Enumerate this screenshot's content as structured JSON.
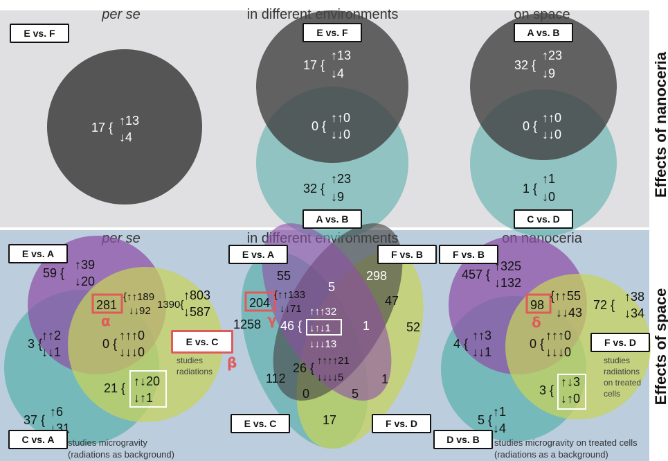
{
  "side_labels": {
    "top": "Effects of nanoceria",
    "bottom": "Effects of space"
  },
  "top_headers": [
    "per se",
    "in different environments",
    "on space"
  ],
  "bottom_headers": [
    "per se",
    "in different environments",
    "on nanoceria"
  ],
  "comparison_labels": {
    "t1": "E vs. F",
    "t2a": "E vs. F",
    "t2b": "A vs. B",
    "t3a": "A vs. B",
    "t3b": "C vs. D",
    "b1a": "E vs. A",
    "b1b": "E vs. C",
    "b1c": "C vs. A",
    "b2a": "E vs. A",
    "b2b": "F vs. B",
    "b2c": "E vs. C",
    "b2d": "F vs. D",
    "b3a": "F vs. B",
    "b3b": "F vs. D",
    "b3c": "D vs. B"
  },
  "top_counts": {
    "t1": {
      "total": "17 {",
      "up": "↑13",
      "down": "↓4"
    },
    "t2_top": {
      "total": "17 {",
      "up": "↑13",
      "down": "↓4"
    },
    "t2_mid": {
      "total": "0 {",
      "up": "↑↑0",
      "down": "↓↓0"
    },
    "t2_bot": {
      "total": "32 {",
      "up": "↑23",
      "down": "↓9"
    },
    "t3_top": {
      "total": "32 {",
      "up": "↑23",
      "down": "↓9"
    },
    "t3_mid": {
      "total": "0 {",
      "up": "↑↑0",
      "down": "↓↓0"
    },
    "t3_bot": {
      "total": "1 {",
      "up": "↑1",
      "down": "↓0"
    }
  },
  "bottom_counts": {
    "b1_purple": {
      "total": "59 {",
      "up": "↑39",
      "down": "↓20"
    },
    "b1_pe": {
      "total": "281",
      "up": "{↑↑189",
      "down": "↓↓92"
    },
    "b1_olive": {
      "total": "1390{",
      "up": "↑803",
      "down": "↓587"
    },
    "b1_pt": {
      "total": "3 {",
      "up": "↑↑2",
      "down": "↓↓1"
    },
    "b1_center": {
      "total": "0 {",
      "up": "↑↑↑0",
      "down": "↓↓↓0"
    },
    "b1_te": {
      "total": "21 {",
      "up": "↑↓20",
      "down": "↓↑1"
    },
    "b1_teal": {
      "total": "37 {",
      "up": "↑6",
      "down": "↓31"
    },
    "b2_top": "55",
    "b2_dark": "298",
    "b2_center_top": "5",
    "b2_pv": {
      "total": "204",
      "up": "{↑↑133",
      "down": "↓↓71"
    },
    "b2_left": "1258",
    "b2_inner": {
      "total": "46 {",
      "a": "↑↑↑32",
      "b": "↓↑↓1",
      "c": "↓↓↓13"
    },
    "b2_c1": "1",
    "b2_r47": "47",
    "b2_r52": "52",
    "b2_112": "112",
    "b2_26": {
      "total": "26 {",
      "up": "↑↑↑↑21",
      "down": "↓↓↓↓5"
    },
    "b2_1b": "1",
    "b2_0": "0",
    "b2_5": "5",
    "b2_17": "17",
    "b3_purple": {
      "total": "457 {",
      "up": "↑325",
      "down": "↓132"
    },
    "b3_pe": {
      "total": "98",
      "up": "{↑↑55",
      "down": "↓↓43"
    },
    "b3_olive": {
      "total": "72 {",
      "up": "↑38",
      "down": "↓34"
    },
    "b3_pt": {
      "total": "4 {",
      "up": "↑↑3",
      "down": "↓↓1"
    },
    "b3_center": {
      "total": "0 {",
      "up": "↑↑↑0",
      "down": "↓↓↓0"
    },
    "b3_te": {
      "total": "3 {",
      "up": "↑↓3",
      "down": "↓↑0"
    },
    "b3_teal": {
      "total": "5 {",
      "up": "↑1",
      "down": "↓4"
    }
  },
  "greek": {
    "alpha": "α",
    "beta": "β",
    "gamma": "γ",
    "delta": "δ"
  },
  "notes": {
    "b1_olive": [
      "studies",
      "radiations"
    ],
    "b1_teal": [
      "studies microgravity",
      "(radiations as background)"
    ],
    "b3_olive": [
      "studies",
      "radiations",
      "on treated",
      "cells"
    ],
    "b3_teal": [
      "studies microgravity on treated cells",
      "(radiations as a background)"
    ]
  },
  "colors": {
    "top_bg": "#e0e0e2",
    "bottom_bg": "#bccdde",
    "dark_circle": "#555555",
    "teal": "#5fb2ad",
    "purple": "#8e4fa5",
    "olive": "#c7d35a",
    "highlight_red": "#e05a5a"
  }
}
